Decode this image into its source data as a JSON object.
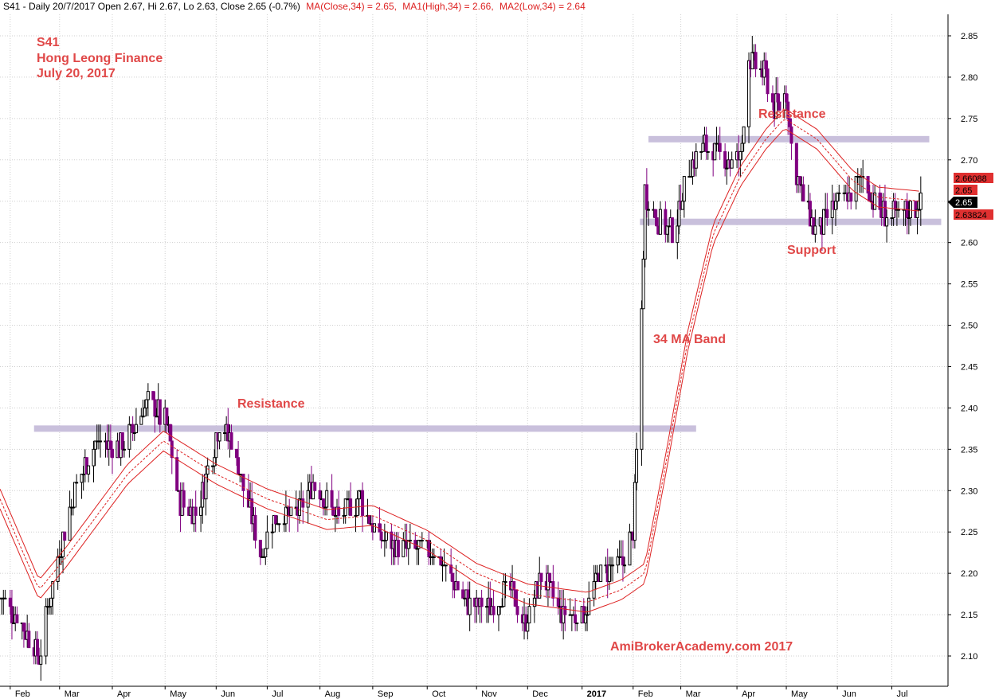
{
  "header": {
    "symbol_info": "S41 - Daily 20/7/2017 Open 2.67, Hi 2.67, Lo 2.63, Close 2.65 (-0.7%)",
    "ma_close": "MA(Close,34) = 2.65,",
    "ma_high": "MA1(High,34) = 2.66,",
    "ma_low": "MA2(Low,34) = 2.64"
  },
  "title_block": {
    "line1": "S41",
    "line2": "Hong Leong Finance",
    "line3": "July 20, 2017"
  },
  "annotations": {
    "resistance_left": "Resistance",
    "resistance_right": "Resistance",
    "support": "Support",
    "ma_band": "34 MA Band",
    "watermark": "AmiBrokerAcademy.com  2017"
  },
  "price_labels": {
    "ma_high": "2.66088",
    "ma_close": "2.65",
    "ma_low": "2.63824",
    "last": "2.65"
  },
  "colors": {
    "accent_red": "#e04848",
    "bar_purple": "#800080",
    "bar_black": "#000000",
    "ma_line": "#dd2222",
    "band": "#c9c0dc",
    "grid": "#cfcfcf"
  },
  "chart_data": {
    "type": "ohlc",
    "title": "S41 Hong Leong Finance",
    "ylim": [
      2.06,
      2.87
    ],
    "y_ticks": [
      "2.10",
      "2.15",
      "2.20",
      "2.25",
      "2.30",
      "2.35",
      "2.40",
      "2.45",
      "2.50",
      "2.55",
      "2.60",
      "2.65",
      "2.70",
      "2.75",
      "2.80",
      "2.85"
    ],
    "x_ticks": [
      "Feb",
      "Mar",
      "Apr",
      "May",
      "Jun",
      "Jul",
      "Aug",
      "Sep",
      "Oct",
      "Nov",
      "Dec",
      "2017",
      "Feb",
      "Mar",
      "Apr",
      "May",
      "Jun",
      "Jul"
    ],
    "x_range": [
      "2016-01-26",
      "2017-08-05"
    ],
    "tick_dates": [
      "2016-02-01",
      "2016-03-01",
      "2016-04-01",
      "2016-05-02",
      "2016-06-01",
      "2016-07-01",
      "2016-08-01",
      "2016-09-01",
      "2016-10-03",
      "2016-11-01",
      "2016-12-01",
      "2017-01-02",
      "2017-02-01",
      "2017-03-01",
      "2017-04-03",
      "2017-05-02",
      "2017-06-01",
      "2017-07-03"
    ],
    "levels": [
      {
        "name": "Resistance",
        "price": 2.375,
        "from": "2016-02-15",
        "to": "2017-03-10"
      },
      {
        "name": "Resistance",
        "price": 2.725,
        "from": "2017-02-10",
        "to": "2017-07-25"
      },
      {
        "name": "Support",
        "price": 2.625,
        "from": "2017-02-05",
        "to": "2017-08-01"
      }
    ],
    "price_anchors": [
      {
        "date": "2016-01-26",
        "price": 2.17
      },
      {
        "date": "2016-02-08",
        "price": 2.14
      },
      {
        "date": "2016-02-18",
        "price": 2.1
      },
      {
        "date": "2016-02-29",
        "price": 2.22
      },
      {
        "date": "2016-03-10",
        "price": 2.3
      },
      {
        "date": "2016-03-22",
        "price": 2.36
      },
      {
        "date": "2016-04-05",
        "price": 2.35
      },
      {
        "date": "2016-04-15",
        "price": 2.38
      },
      {
        "date": "2016-04-22",
        "price": 2.41
      },
      {
        "date": "2016-05-03",
        "price": 2.38
      },
      {
        "date": "2016-05-10",
        "price": 2.29
      },
      {
        "date": "2016-05-20",
        "price": 2.27
      },
      {
        "date": "2016-06-03",
        "price": 2.38
      },
      {
        "date": "2016-06-10",
        "price": 2.36
      },
      {
        "date": "2016-06-20",
        "price": 2.28
      },
      {
        "date": "2016-06-27",
        "price": 2.22
      },
      {
        "date": "2016-07-05",
        "price": 2.27
      },
      {
        "date": "2016-07-18",
        "price": 2.27
      },
      {
        "date": "2016-07-28",
        "price": 2.31
      },
      {
        "date": "2016-08-10",
        "price": 2.27
      },
      {
        "date": "2016-08-25",
        "price": 2.29
      },
      {
        "date": "2016-09-05",
        "price": 2.24
      },
      {
        "date": "2016-09-20",
        "price": 2.23
      },
      {
        "date": "2016-10-05",
        "price": 2.23
      },
      {
        "date": "2016-10-15",
        "price": 2.2
      },
      {
        "date": "2016-10-28",
        "price": 2.16
      },
      {
        "date": "2016-11-10",
        "price": 2.16
      },
      {
        "date": "2016-11-20",
        "price": 2.18
      },
      {
        "date": "2016-11-30",
        "price": 2.14
      },
      {
        "date": "2016-12-10",
        "price": 2.2
      },
      {
        "date": "2016-12-20",
        "price": 2.15
      },
      {
        "date": "2017-01-03",
        "price": 2.15
      },
      {
        "date": "2017-01-12",
        "price": 2.2
      },
      {
        "date": "2017-01-25",
        "price": 2.21
      },
      {
        "date": "2017-02-01",
        "price": 2.25
      },
      {
        "date": "2017-02-05",
        "price": 2.45
      },
      {
        "date": "2017-02-08",
        "price": 2.66
      },
      {
        "date": "2017-02-15",
        "price": 2.63
      },
      {
        "date": "2017-02-25",
        "price": 2.61
      },
      {
        "date": "2017-03-05",
        "price": 2.69
      },
      {
        "date": "2017-03-15",
        "price": 2.72
      },
      {
        "date": "2017-03-25",
        "price": 2.7
      },
      {
        "date": "2017-04-05",
        "price": 2.7
      },
      {
        "date": "2017-04-10",
        "price": 2.82
      },
      {
        "date": "2017-04-20",
        "price": 2.8
      },
      {
        "date": "2017-04-25",
        "price": 2.76
      },
      {
        "date": "2017-05-02",
        "price": 2.78
      },
      {
        "date": "2017-05-06",
        "price": 2.7
      },
      {
        "date": "2017-05-12",
        "price": 2.65
      },
      {
        "date": "2017-05-20",
        "price": 2.61
      },
      {
        "date": "2017-05-28",
        "price": 2.64
      },
      {
        "date": "2017-06-08",
        "price": 2.66
      },
      {
        "date": "2017-06-16",
        "price": 2.68
      },
      {
        "date": "2017-06-24",
        "price": 2.64
      },
      {
        "date": "2017-07-05",
        "price": 2.63
      },
      {
        "date": "2017-07-14",
        "price": 2.64
      },
      {
        "date": "2017-07-20",
        "price": 2.65
      }
    ],
    "ma_close_anchors": [
      {
        "date": "2016-01-26",
        "price": 2.29
      },
      {
        "date": "2016-02-18",
        "price": 2.18
      },
      {
        "date": "2016-03-05",
        "price": 2.22
      },
      {
        "date": "2016-04-10",
        "price": 2.32
      },
      {
        "date": "2016-05-01",
        "price": 2.36
      },
      {
        "date": "2016-06-01",
        "price": 2.32
      },
      {
        "date": "2016-07-01",
        "price": 2.29
      },
      {
        "date": "2016-08-05",
        "price": 2.265
      },
      {
        "date": "2016-09-01",
        "price": 2.27
      },
      {
        "date": "2016-10-03",
        "price": 2.24
      },
      {
        "date": "2016-11-01",
        "price": 2.2
      },
      {
        "date": "2016-12-01",
        "price": 2.175
      },
      {
        "date": "2017-01-05",
        "price": 2.165
      },
      {
        "date": "2017-01-25",
        "price": 2.18
      },
      {
        "date": "2017-02-08",
        "price": 2.2
      },
      {
        "date": "2017-02-20",
        "price": 2.33
      },
      {
        "date": "2017-03-05",
        "price": 2.48
      },
      {
        "date": "2017-03-20",
        "price": 2.61
      },
      {
        "date": "2017-04-05",
        "price": 2.68
      },
      {
        "date": "2017-04-20",
        "price": 2.725
      },
      {
        "date": "2017-05-01",
        "price": 2.75
      },
      {
        "date": "2017-05-20",
        "price": 2.725
      },
      {
        "date": "2017-06-10",
        "price": 2.675
      },
      {
        "date": "2017-06-25",
        "price": 2.655
      },
      {
        "date": "2017-07-20",
        "price": 2.65
      }
    ],
    "ma_high": 2.66088,
    "ma_low": 2.63824
  }
}
